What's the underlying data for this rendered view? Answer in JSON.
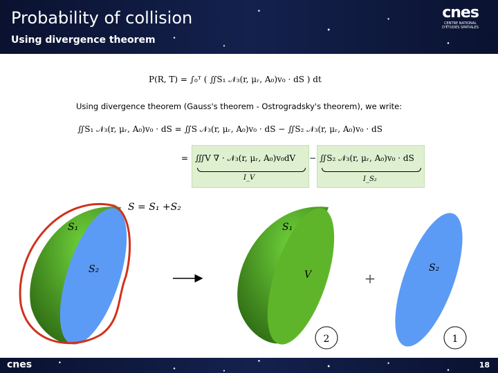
{
  "header": {
    "title": "Probability of collision",
    "subtitle": "Using divergence theorem",
    "logo": {
      "name": "cnes",
      "tagline": [
        "CENTRE NATIONAL",
        "D'ÉTUDES SPATIALES"
      ]
    }
  },
  "formulas": {
    "probability": "P(R, T) = ∫₀ᵀ ( ∬S₁ 𝒩₃(r, μᵣ, A₀)v₀ · dS ) dt",
    "divergence_line1": "∬S₁ 𝒩₃(r, μᵣ, A₀)v₀ · dS = ∬S 𝒩₃(r, μᵣ, A₀)v₀ · dS − ∬S₂ 𝒩₃(r, μᵣ, A₀)v₀ · dS",
    "equals": "=",
    "volume_term": "∭V ∇ · 𝒩₃(r, μᵣ, A₀)v₀dV",
    "volume_label": "I_V",
    "minus": "−",
    "surface_term": "∬S₂ 𝒩₃(r, μᵣ, A₀)v₀ · dS",
    "surface_label": "I_S₂"
  },
  "intro_text": "Using divergence theorem (Gauss's theorem - Ostrogradsky's theorem), we write:",
  "diagram": {
    "surface_sum": "S = S₁ +S₂",
    "left": {
      "s1": "S₁",
      "s2": "S₂"
    },
    "middle": {
      "s1": "S₁",
      "v": "V",
      "badge": "2"
    },
    "plus": "+",
    "right": {
      "s2": "S₂",
      "badge": "1"
    }
  },
  "footer": {
    "logo": "cnes",
    "page": "18"
  }
}
